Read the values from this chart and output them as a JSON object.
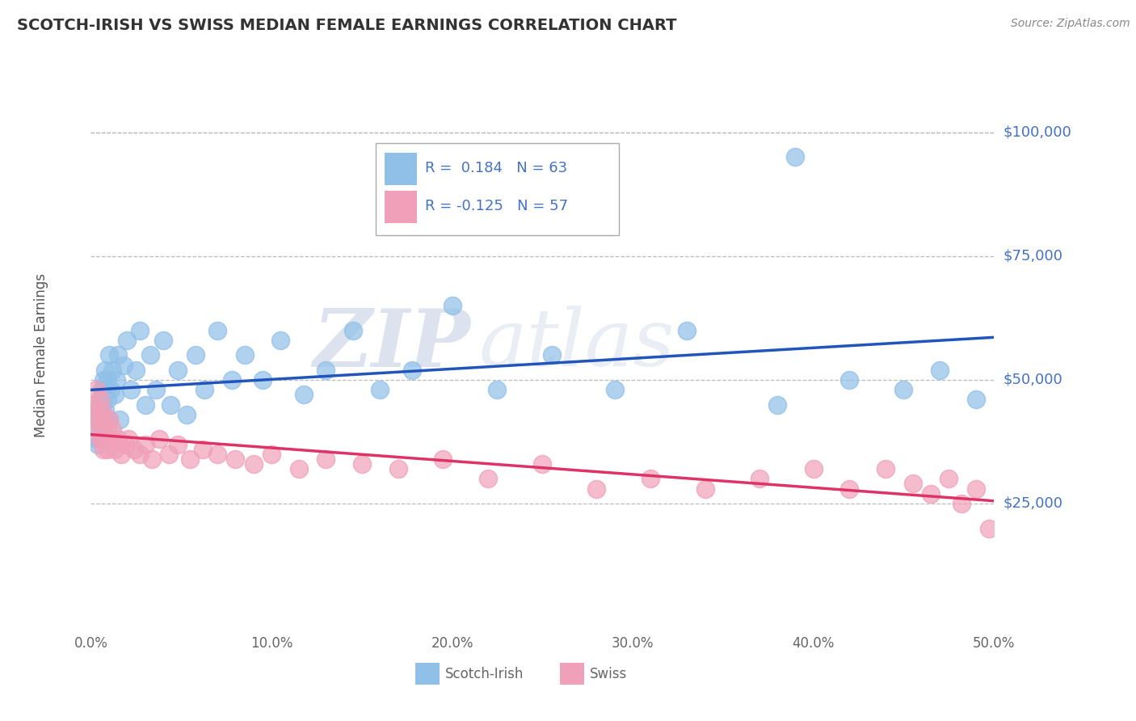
{
  "title": "SCOTCH-IRISH VS SWISS MEDIAN FEMALE EARNINGS CORRELATION CHART",
  "source_text": "Source: ZipAtlas.com",
  "ylabel": "Median Female Earnings",
  "xlim": [
    0.0,
    0.5
  ],
  "ylim": [
    0,
    110000
  ],
  "yticks": [
    25000,
    50000,
    75000,
    100000
  ],
  "ytick_labels": [
    "$25,000",
    "$50,000",
    "$75,000",
    "$100,000"
  ],
  "xticks": [
    0.0,
    0.1,
    0.2,
    0.3,
    0.4,
    0.5
  ],
  "xtick_labels": [
    "0.0%",
    "10.0%",
    "20.0%",
    "30.0%",
    "40.0%",
    "50.0%"
  ],
  "scotch_irish_color": "#90C0E8",
  "swiss_color": "#F0A0B8",
  "scotch_irish_line_color": "#2255BB",
  "swiss_line_color": "#DD3366",
  "scotch_irish_R": 0.184,
  "scotch_irish_N": 63,
  "swiss_R": -0.125,
  "swiss_N": 57,
  "legend_label_scotch": "Scotch-Irish",
  "legend_label_swiss": "Swiss",
  "watermark_zip": "ZIP",
  "watermark_atlas": "atlas",
  "background_color": "#FFFFFF",
  "grid_color": "#BBBBBB",
  "title_color": "#333333",
  "axis_label_color": "#555555",
  "ytick_color": "#4472C4",
  "xtick_color": "#666666",
  "scotch_irish_x": [
    0.002,
    0.003,
    0.003,
    0.004,
    0.004,
    0.004,
    0.005,
    0.005,
    0.005,
    0.006,
    0.006,
    0.006,
    0.007,
    0.007,
    0.007,
    0.008,
    0.008,
    0.008,
    0.009,
    0.009,
    0.01,
    0.01,
    0.011,
    0.012,
    0.013,
    0.014,
    0.015,
    0.016,
    0.018,
    0.02,
    0.022,
    0.025,
    0.027,
    0.03,
    0.033,
    0.036,
    0.04,
    0.044,
    0.048,
    0.053,
    0.058,
    0.063,
    0.07,
    0.078,
    0.085,
    0.095,
    0.105,
    0.118,
    0.13,
    0.145,
    0.16,
    0.178,
    0.2,
    0.225,
    0.255,
    0.29,
    0.33,
    0.38,
    0.39,
    0.42,
    0.45,
    0.47,
    0.49
  ],
  "scotch_irish_y": [
    44000,
    42000,
    38000,
    43000,
    40000,
    37000,
    46000,
    44000,
    41000,
    48000,
    45000,
    42000,
    50000,
    47000,
    43000,
    52000,
    48000,
    44000,
    50000,
    46000,
    55000,
    42000,
    48000,
    52000,
    47000,
    50000,
    55000,
    42000,
    53000,
    58000,
    48000,
    52000,
    60000,
    45000,
    55000,
    48000,
    58000,
    45000,
    52000,
    43000,
    55000,
    48000,
    60000,
    50000,
    55000,
    50000,
    58000,
    47000,
    52000,
    60000,
    48000,
    52000,
    65000,
    48000,
    55000,
    48000,
    60000,
    45000,
    95000,
    50000,
    48000,
    52000,
    46000
  ],
  "swiss_x": [
    0.002,
    0.003,
    0.003,
    0.004,
    0.004,
    0.005,
    0.005,
    0.005,
    0.006,
    0.006,
    0.007,
    0.007,
    0.008,
    0.008,
    0.009,
    0.009,
    0.01,
    0.011,
    0.012,
    0.013,
    0.015,
    0.017,
    0.019,
    0.021,
    0.024,
    0.027,
    0.03,
    0.034,
    0.038,
    0.043,
    0.048,
    0.055,
    0.062,
    0.07,
    0.08,
    0.09,
    0.1,
    0.115,
    0.13,
    0.15,
    0.17,
    0.195,
    0.22,
    0.25,
    0.28,
    0.31,
    0.34,
    0.37,
    0.4,
    0.42,
    0.44,
    0.455,
    0.465,
    0.475,
    0.482,
    0.49,
    0.497
  ],
  "swiss_y": [
    45000,
    42000,
    48000,
    40000,
    44000,
    46000,
    38000,
    42000,
    44000,
    38000,
    40000,
    36000,
    42000,
    38000,
    40000,
    36000,
    42000,
    38000,
    40000,
    36000,
    38000,
    35000,
    37000,
    38000,
    36000,
    35000,
    37000,
    34000,
    38000,
    35000,
    37000,
    34000,
    36000,
    35000,
    34000,
    33000,
    35000,
    32000,
    34000,
    33000,
    32000,
    34000,
    30000,
    33000,
    28000,
    30000,
    28000,
    30000,
    32000,
    28000,
    32000,
    29000,
    27000,
    30000,
    25000,
    28000,
    20000
  ]
}
